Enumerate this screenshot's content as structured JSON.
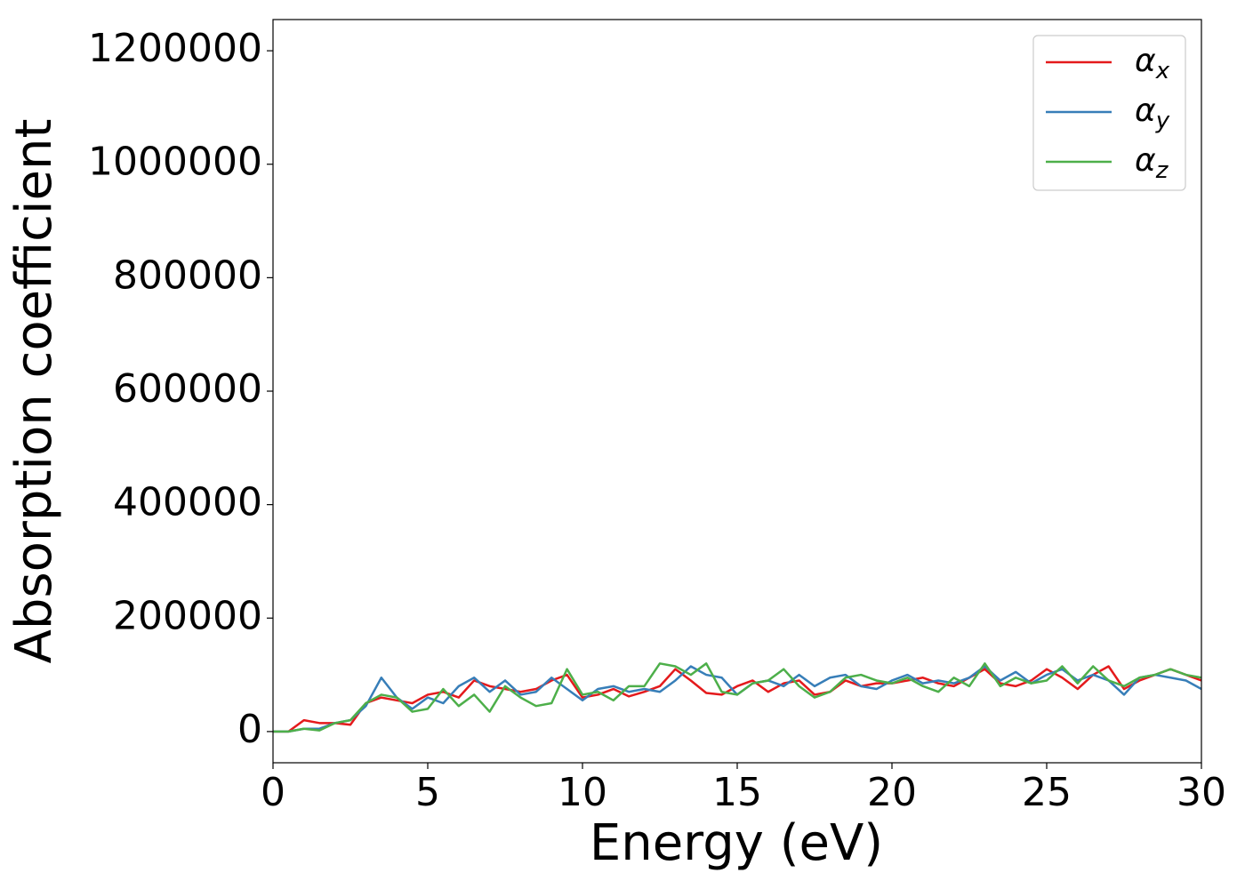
{
  "chart_data": {
    "type": "line",
    "xlabel": "Energy (eV)",
    "ylabel": "Absorption coefficient",
    "x": [
      0,
      0.5,
      1,
      1.5,
      2,
      2.5,
      3,
      3.5,
      4,
      4.5,
      5,
      5.5,
      6,
      6.5,
      7,
      7.5,
      8,
      8.5,
      9,
      9.5,
      10,
      10.5,
      11,
      11.5,
      12,
      12.5,
      13,
      13.5,
      14,
      14.5,
      15,
      15.5,
      16,
      16.5,
      17,
      17.5,
      18,
      18.5,
      19,
      19.5,
      20,
      20.5,
      21,
      21.5,
      22,
      22.5,
      23,
      23.5,
      24,
      24.5,
      25,
      25.5,
      26,
      26.5,
      27,
      27.5,
      28,
      28.5,
      29,
      29.5,
      30
    ],
    "series": [
      {
        "name": "αx",
        "color": "#e41a1c",
        "values": [
          0,
          0,
          20000,
          15000,
          15000,
          12000,
          50000,
          60000,
          55000,
          50000,
          65000,
          70000,
          60000,
          90000,
          80000,
          75000,
          70000,
          75000,
          90000,
          100000,
          60000,
          65000,
          75000,
          62000,
          70000,
          80000,
          110000,
          90000,
          68000,
          65000,
          80000,
          90000,
          70000,
          85000,
          90000,
          65000,
          70000,
          90000,
          80000,
          85000,
          85000,
          90000,
          95000,
          85000,
          80000,
          95000,
          110000,
          85000,
          80000,
          90000,
          110000,
          95000,
          75000,
          100000,
          115000,
          75000,
          90000,
          100000,
          110000,
          100000,
          90000
        ]
      },
      {
        "name": "αy",
        "color": "#377eb8",
        "values": [
          0,
          0,
          5000,
          5000,
          15000,
          20000,
          45000,
          95000,
          60000,
          40000,
          60000,
          50000,
          80000,
          95000,
          70000,
          90000,
          65000,
          70000,
          95000,
          75000,
          55000,
          75000,
          80000,
          70000,
          75000,
          70000,
          90000,
          115000,
          100000,
          95000,
          65000,
          85000,
          90000,
          80000,
          100000,
          80000,
          95000,
          100000,
          80000,
          75000,
          90000,
          100000,
          85000,
          90000,
          85000,
          95000,
          115000,
          90000,
          105000,
          85000,
          100000,
          110000,
          90000,
          100000,
          90000,
          65000,
          95000,
          100000,
          95000,
          90000,
          75000
        ]
      },
      {
        "name": "αz",
        "color": "#4daf4a",
        "values": [
          0,
          0,
          5000,
          2000,
          15000,
          20000,
          50000,
          65000,
          60000,
          35000,
          40000,
          75000,
          45000,
          65000,
          35000,
          80000,
          60000,
          45000,
          50000,
          110000,
          65000,
          70000,
          55000,
          80000,
          80000,
          120000,
          115000,
          100000,
          120000,
          70000,
          65000,
          85000,
          90000,
          110000,
          80000,
          60000,
          70000,
          95000,
          100000,
          90000,
          85000,
          95000,
          80000,
          70000,
          95000,
          80000,
          120000,
          80000,
          95000,
          85000,
          90000,
          115000,
          85000,
          115000,
          90000,
          80000,
          95000,
          100000,
          110000,
          100000,
          95000
        ]
      }
    ],
    "xlim": [
      0,
      30
    ],
    "xticks": [
      0,
      5,
      10,
      15,
      20,
      25,
      30
    ],
    "ylim": [
      -55000,
      1255000
    ],
    "yticks": [
      0,
      200000,
      400000,
      600000,
      800000,
      1000000,
      1200000
    ],
    "legend": "upper right",
    "grid": false
  }
}
